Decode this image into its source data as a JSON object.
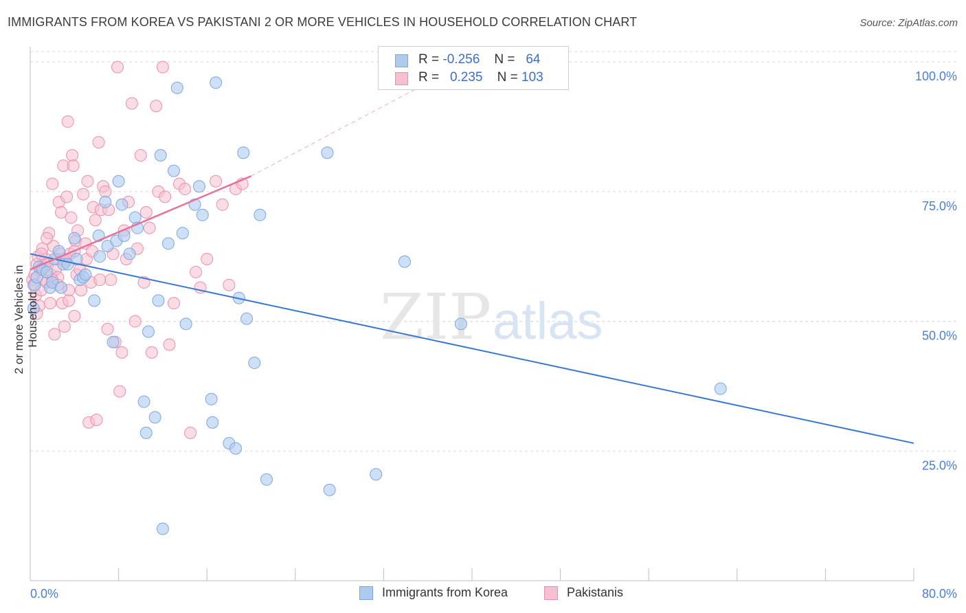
{
  "title": "IMMIGRANTS FROM KOREA VS PAKISTANI 2 OR MORE VEHICLES IN HOUSEHOLD CORRELATION CHART",
  "source": "Source: ZipAtlas.com",
  "watermark": {
    "zip": "ZIP",
    "atlas": "atlas"
  },
  "legend_top": {
    "rows": [
      {
        "r_label": "R =",
        "r_value": "-0.256",
        "n_label": "N =",
        "n_value": "64"
      },
      {
        "r_label": "R =",
        "r_value": "0.235",
        "n_label": "N =",
        "n_value": "103"
      }
    ]
  },
  "legend_bottom": {
    "series1": "Immigrants from Korea",
    "series2": "Pakistanis"
  },
  "colors": {
    "blue_fill": "#aecbef",
    "blue_stroke": "#7da6df",
    "blue_line": "#3a78d0",
    "pink_fill": "#f6c0d0",
    "pink_stroke": "#ec8fac",
    "pink_line": "#e8709a",
    "axis_text_blue": "#4a7fcf",
    "grid": "#d9d9d9"
  },
  "chart_data": {
    "type": "scatter",
    "title": "IMMIGRANTS FROM KOREA VS PAKISTANI 2 OR MORE VEHICLES IN HOUSEHOLD CORRELATION CHART",
    "xlabel": "",
    "ylabel": "2 or more Vehicles in Household",
    "xlim": [
      0,
      80
    ],
    "ylim": [
      0,
      102
    ],
    "x_tick_labels": [
      "0.0%",
      "80.0%"
    ],
    "y_ticks": [
      25,
      50,
      75,
      100
    ],
    "y_tick_labels": [
      "25.0%",
      "50.0%",
      "75.0%",
      "100.0%"
    ],
    "grid": true,
    "series": [
      {
        "name": "Immigrants from Korea",
        "R": -0.256,
        "N": 64,
        "trend": {
          "x0": 0,
          "y0": 63,
          "x1": 80,
          "y1": 26.5
        },
        "points": [
          [
            0.3,
            52.5
          ],
          [
            0.4,
            57
          ],
          [
            0.6,
            58.5
          ],
          [
            0.8,
            60.5
          ],
          [
            1.1,
            60
          ],
          [
            1.5,
            59.5
          ],
          [
            1.8,
            56.5
          ],
          [
            2.0,
            57.5
          ],
          [
            2.2,
            62
          ],
          [
            2.6,
            63.5
          ],
          [
            2.8,
            56.5
          ],
          [
            3.0,
            61
          ],
          [
            3.4,
            61
          ],
          [
            4.0,
            66
          ],
          [
            4.2,
            62
          ],
          [
            4.5,
            58
          ],
          [
            4.8,
            58.5
          ],
          [
            5.0,
            59
          ],
          [
            5.8,
            54
          ],
          [
            6.2,
            66.5
          ],
          [
            6.3,
            62.5
          ],
          [
            6.8,
            73
          ],
          [
            7.0,
            64.5
          ],
          [
            7.5,
            46
          ],
          [
            7.8,
            65.5
          ],
          [
            8.0,
            77
          ],
          [
            8.3,
            72.5
          ],
          [
            8.5,
            66.5
          ],
          [
            9.0,
            63
          ],
          [
            9.5,
            70
          ],
          [
            9.7,
            68
          ],
          [
            10.3,
            34.5
          ],
          [
            10.5,
            28.5
          ],
          [
            10.7,
            48
          ],
          [
            11.3,
            31.5
          ],
          [
            11.6,
            54
          ],
          [
            11.8,
            82
          ],
          [
            12.0,
            10
          ],
          [
            12.5,
            65
          ],
          [
            13.0,
            79
          ],
          [
            13.3,
            95
          ],
          [
            13.8,
            67
          ],
          [
            14.1,
            49.5
          ],
          [
            14.9,
            72.5
          ],
          [
            15.3,
            76
          ],
          [
            15.6,
            70.5
          ],
          [
            16.4,
            35
          ],
          [
            16.5,
            30.5
          ],
          [
            16.8,
            96
          ],
          [
            18.0,
            26.5
          ],
          [
            18.6,
            25.5
          ],
          [
            18.9,
            54.5
          ],
          [
            19.3,
            82.5
          ],
          [
            19.6,
            50.5
          ],
          [
            20.3,
            42
          ],
          [
            20.8,
            70.5
          ],
          [
            21.4,
            19.5
          ],
          [
            26.9,
            82.5
          ],
          [
            27.1,
            17.5
          ],
          [
            31.3,
            20.5
          ],
          [
            33.9,
            61.5
          ],
          [
            39.0,
            49.5
          ],
          [
            62.5,
            37
          ]
        ]
      },
      {
        "name": "Pakistanis",
        "R": 0.235,
        "N": 103,
        "trend": {
          "x0": 0,
          "y0": 60,
          "x1": 20,
          "y1": 78,
          "dashed_to_x": 40,
          "dashed_to_y": 100.5
        },
        "points": [
          [
            0.2,
            58
          ],
          [
            0.3,
            57
          ],
          [
            0.4,
            59
          ],
          [
            0.5,
            55
          ],
          [
            0.6,
            61
          ],
          [
            0.7,
            62.5
          ],
          [
            0.8,
            53
          ],
          [
            0.9,
            60
          ],
          [
            1.0,
            56
          ],
          [
            1.1,
            64
          ],
          [
            1.2,
            58
          ],
          [
            1.3,
            60.5
          ],
          [
            1.4,
            62
          ],
          [
            1.5,
            57.5
          ],
          [
            1.6,
            61
          ],
          [
            1.7,
            67
          ],
          [
            1.8,
            53.5
          ],
          [
            1.9,
            59
          ],
          [
            2.0,
            76.5
          ],
          [
            2.1,
            64.5
          ],
          [
            2.2,
            47.5
          ],
          [
            2.3,
            60
          ],
          [
            2.4,
            62
          ],
          [
            2.5,
            58.5
          ],
          [
            2.6,
            73
          ],
          [
            2.7,
            63
          ],
          [
            2.8,
            71
          ],
          [
            2.9,
            53.5
          ],
          [
            3.0,
            80
          ],
          [
            3.1,
            49
          ],
          [
            3.2,
            61.5
          ],
          [
            3.3,
            74
          ],
          [
            3.4,
            88.5
          ],
          [
            3.5,
            56
          ],
          [
            3.6,
            63
          ],
          [
            3.7,
            70
          ],
          [
            3.8,
            82
          ],
          [
            3.9,
            80
          ],
          [
            4.0,
            51
          ],
          [
            4.1,
            65.5
          ],
          [
            4.2,
            59
          ],
          [
            4.3,
            67.5
          ],
          [
            4.5,
            60
          ],
          [
            4.6,
            56
          ],
          [
            4.8,
            74.5
          ],
          [
            5.0,
            65
          ],
          [
            5.1,
            62
          ],
          [
            5.2,
            77
          ],
          [
            5.3,
            30.5
          ],
          [
            5.5,
            57.5
          ],
          [
            5.6,
            63.5
          ],
          [
            5.7,
            72
          ],
          [
            5.9,
            69.5
          ],
          [
            6.0,
            31
          ],
          [
            6.2,
            84.5
          ],
          [
            6.3,
            58
          ],
          [
            6.4,
            71.5
          ],
          [
            6.6,
            76
          ],
          [
            6.8,
            75
          ],
          [
            7.0,
            48.5
          ],
          [
            7.1,
            71.5
          ],
          [
            7.3,
            58
          ],
          [
            7.5,
            63
          ],
          [
            7.7,
            46
          ],
          [
            7.9,
            99
          ],
          [
            8.1,
            36.5
          ],
          [
            8.3,
            44
          ],
          [
            8.5,
            67.5
          ],
          [
            8.7,
            62
          ],
          [
            8.9,
            73
          ],
          [
            9.2,
            92
          ],
          [
            9.5,
            50
          ],
          [
            9.7,
            64
          ],
          [
            10.0,
            82
          ],
          [
            10.3,
            57.5
          ],
          [
            10.5,
            71
          ],
          [
            10.8,
            68
          ],
          [
            11.0,
            44
          ],
          [
            11.4,
            91.5
          ],
          [
            11.6,
            75
          ],
          [
            12.0,
            99
          ],
          [
            12.2,
            74
          ],
          [
            12.6,
            45.5
          ],
          [
            13.0,
            53.5
          ],
          [
            13.5,
            76.5
          ],
          [
            14.0,
            75.5
          ],
          [
            14.5,
            28.5
          ],
          [
            15.0,
            59.5
          ],
          [
            15.4,
            56.5
          ],
          [
            16.0,
            62
          ],
          [
            16.8,
            77
          ],
          [
            17.4,
            72.5
          ],
          [
            18.0,
            57
          ],
          [
            18.6,
            75.5
          ],
          [
            19.2,
            76.5
          ],
          [
            0.6,
            51.5
          ],
          [
            1.0,
            63
          ],
          [
            1.5,
            66
          ],
          [
            2.0,
            58
          ],
          [
            2.5,
            57
          ],
          [
            3.0,
            62
          ],
          [
            3.5,
            54
          ],
          [
            4.0,
            63.5
          ]
        ]
      }
    ]
  }
}
